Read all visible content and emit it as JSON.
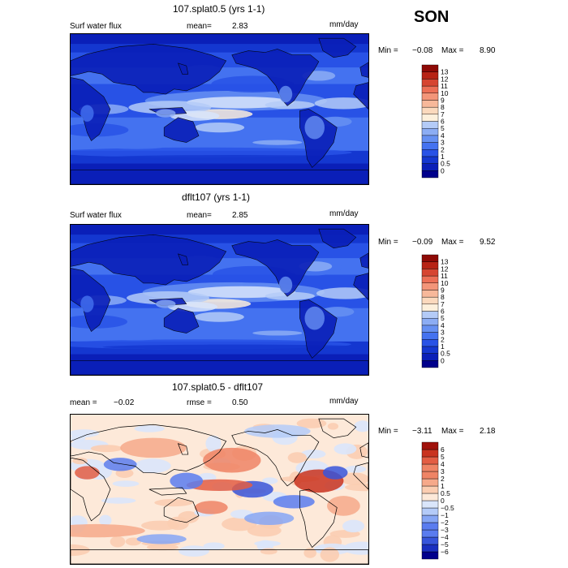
{
  "season": "SON",
  "colors": {
    "absolute_scale": [
      "#00008b",
      "#0a1fb8",
      "#1437d0",
      "#2852e6",
      "#4472f0",
      "#6690f2",
      "#8cadf4",
      "#b4cbf7",
      "#d8e5fb",
      "#fdf0dc",
      "#fbd9bd",
      "#f7b89a",
      "#f39579",
      "#ec6f56",
      "#d64531",
      "#b72315",
      "#8e0a06"
    ],
    "diff_scale": [
      "#00008b",
      "#1a2fc0",
      "#3755db",
      "#5a7cef",
      "#86a6f4",
      "#b4cbf8",
      "#dae6fb",
      "#fde9d9",
      "#fbcdb1",
      "#f6a98a",
      "#ef8465",
      "#e35d43",
      "#c9331f",
      "#a0120b"
    ],
    "coastline": "#000000"
  },
  "panels": [
    {
      "title": "107.splat0.5 (yrs 1-1)",
      "left_label": "Surf water flux",
      "mean_label": "mean=",
      "mean_value": "2.83",
      "units": "mm/day",
      "min_label": "Min =",
      "min_value": "−0.08",
      "max_label": "Max =",
      "max_value": "8.90"
    },
    {
      "title": "dflt107 (yrs 1-1)",
      "left_label": "Surf water flux",
      "mean_label": "mean=",
      "mean_value": "2.85",
      "units": "mm/day",
      "min_label": "Min =",
      "min_value": "−0.09",
      "max_label": "Max =",
      "max_value": "9.52"
    },
    {
      "title": "107.splat0.5 - dflt107",
      "mean_label": "mean =",
      "mean_value": "−0.02",
      "rmse_label": "rmse =",
      "rmse_value": "0.50",
      "units": "mm/day",
      "min_label": "Min =",
      "min_value": "−3.11",
      "max_label": "Max =",
      "max_value": "2.18"
    }
  ],
  "chart_data": [
    {
      "type": "heatmap",
      "title": "107.splat0.5 (yrs 1-1)",
      "variable": "Surf water flux",
      "units": "mm/day",
      "mean": 2.83,
      "min": -0.08,
      "max": 8.9,
      "colorbar_levels": [
        "0",
        "0.5",
        "1",
        "2",
        "3",
        "4",
        "5",
        "6",
        "7",
        "8",
        "9",
        "10",
        "11",
        "12",
        "13"
      ]
    },
    {
      "type": "heatmap",
      "title": "dflt107 (yrs 1-1)",
      "variable": "Surf water flux",
      "units": "mm/day",
      "mean": 2.85,
      "min": -0.09,
      "max": 9.52,
      "colorbar_levels": [
        "0",
        "0.5",
        "1",
        "2",
        "3",
        "4",
        "5",
        "6",
        "7",
        "8",
        "9",
        "10",
        "11",
        "12",
        "13"
      ]
    },
    {
      "type": "heatmap",
      "title": "107.splat0.5 - dflt107",
      "units": "mm/day",
      "mean": -0.02,
      "rmse": 0.5,
      "min": -3.11,
      "max": 2.18,
      "colorbar_levels": [
        "−6",
        "−5",
        "−4",
        "−3",
        "−2",
        "−1",
        "−0.5",
        "0",
        "0.5",
        "1",
        "2",
        "3",
        "4",
        "5",
        "6"
      ]
    }
  ]
}
